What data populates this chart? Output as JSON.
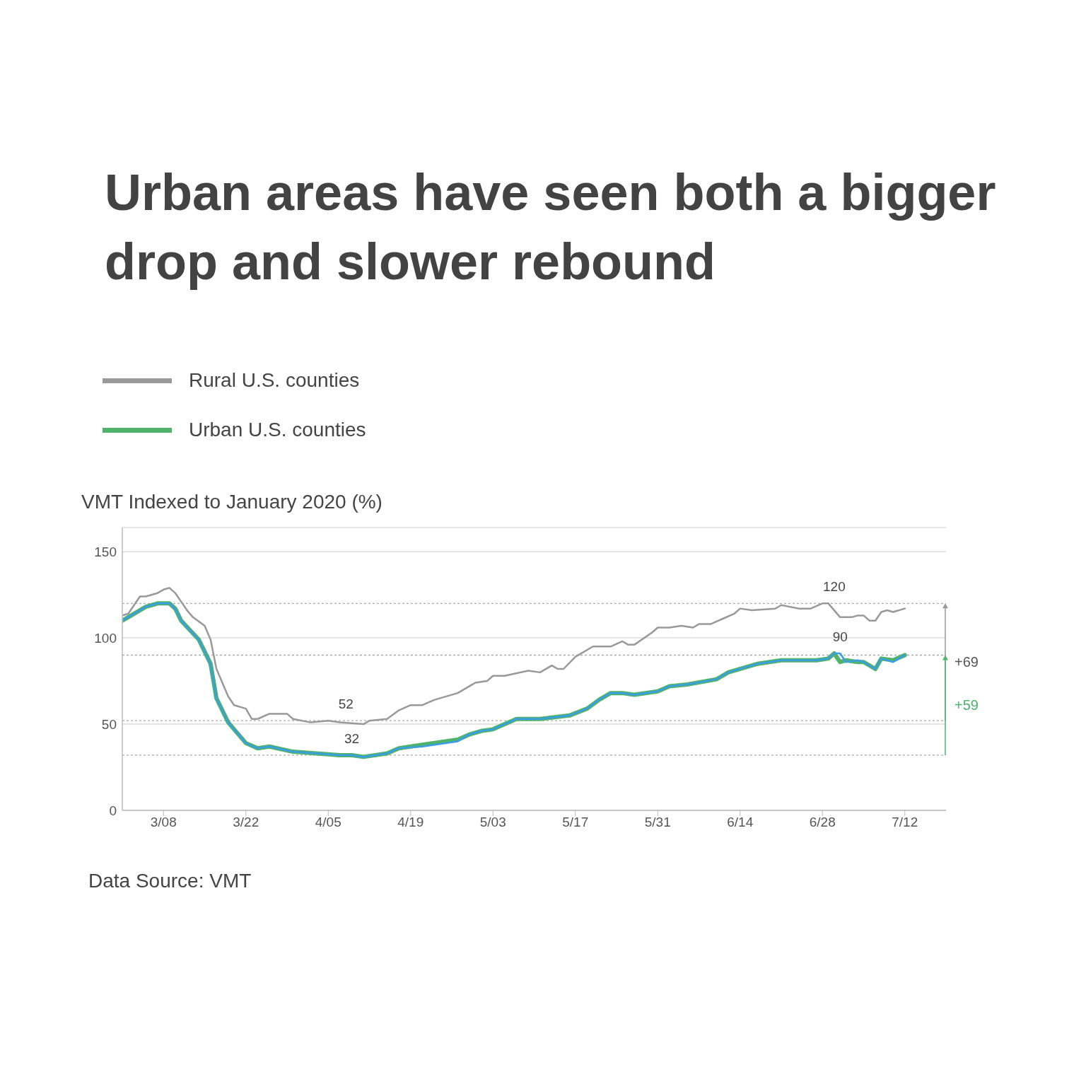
{
  "chart_data": {
    "type": "line",
    "title": "Urban areas have seen both a bigger drop and slower rebound",
    "ylabel": "VMT Indexed to January 2020 (%)",
    "series": [
      {
        "name": "Rural U.S. counties",
        "color": "#999999",
        "x": [
          "--03-01",
          "--03-02",
          "--03-04",
          "--03-05",
          "--03-07",
          "--03-08",
          "--03-09",
          "--03-10",
          "--03-12",
          "--03-13",
          "--03-15",
          "--03-16",
          "--03-17",
          "--03-19",
          "--03-20",
          "--03-22",
          "--03-23",
          "--03-24",
          "--03-26",
          "--03-29",
          "--03-30",
          "--04-02",
          "--04-05",
          "--04-07",
          "--04-11",
          "--04-12",
          "--04-15",
          "--04-17",
          "--04-19",
          "--04-21",
          "--04-23",
          "--04-27",
          "--04-29",
          "--04-30",
          "--05-02",
          "--05-03",
          "--05-05",
          "--05-09",
          "--05-11",
          "--05-13",
          "--05-14",
          "--05-15",
          "--05-17",
          "--05-20",
          "--05-21",
          "--05-23",
          "--05-25",
          "--05-26",
          "--05-27",
          "--05-30",
          "--05-31",
          "--06-02",
          "--06-04",
          "--06-06",
          "--06-07",
          "--06-09",
          "--06-11",
          "--06-13",
          "--06-14",
          "--06-16",
          "--06-20",
          "--06-21",
          "--06-24",
          "--06-26",
          "--06-28",
          "--06-29",
          "--07-01",
          "--07-03",
          "--07-04",
          "--07-05",
          "--07-06",
          "--07-07",
          "--07-08",
          "--07-09",
          "--07-10",
          "--07-12"
        ],
        "values": [
          113,
          114,
          124,
          124,
          126,
          128,
          129,
          126,
          116,
          112,
          107,
          99,
          82,
          66,
          61,
          59,
          53,
          53,
          56,
          56,
          53,
          51,
          52,
          51,
          50,
          52,
          53,
          58,
          61,
          61,
          64,
          68,
          72,
          74,
          75,
          78,
          78,
          81,
          80,
          84,
          82,
          82,
          89,
          95,
          95,
          95,
          98,
          96,
          96,
          103,
          106,
          106,
          107,
          106,
          108,
          108,
          111,
          114,
          117,
          116,
          117,
          119,
          117,
          117,
          120,
          120,
          112,
          112,
          113,
          113,
          110,
          110,
          115,
          116,
          115,
          117
        ]
      },
      {
        "name": "Urban U.S. counties",
        "color": "#4fb36b",
        "x": [
          "--03-01",
          "--03-02",
          "--03-05",
          "--03-07",
          "--03-09",
          "--03-10",
          "--03-11",
          "--03-14",
          "--03-16",
          "--03-17",
          "--03-19",
          "--03-22",
          "--03-24",
          "--03-26",
          "--03-30",
          "--04-03",
          "--04-07",
          "--04-09",
          "--04-11",
          "--04-15",
          "--04-17",
          "--04-21",
          "--04-27",
          "--04-29",
          "--05-01",
          "--05-03",
          "--05-05",
          "--05-07",
          "--05-11",
          "--05-16",
          "--05-19",
          "--05-21",
          "--05-23",
          "--05-25",
          "--05-27",
          "--05-31",
          "--06-02",
          "--06-05",
          "--06-10",
          "--06-12",
          "--06-17",
          "--06-21",
          "--06-27",
          "--06-29",
          "--06-30",
          "--07-01",
          "--07-02",
          "--07-04",
          "--07-05",
          "--07-07",
          "--07-08",
          "--07-10",
          "--07-12"
        ],
        "values": [
          110,
          112,
          118,
          120,
          120,
          117,
          110,
          99,
          85,
          65,
          51,
          39,
          36,
          37,
          34,
          33,
          32,
          32,
          31,
          33,
          36,
          38,
          41,
          44,
          46,
          47,
          50,
          53,
          53,
          55,
          59,
          64,
          68,
          68,
          67,
          69,
          72,
          73,
          76,
          80,
          85,
          87,
          87,
          88,
          91,
          86,
          87,
          86,
          86,
          82,
          88,
          87,
          90
        ]
      },
      {
        "color": "#3a9de8",
        "x": [
          "--03-01",
          "--03-02",
          "--03-05",
          "--03-07",
          "--03-09",
          "--03-10",
          "--03-11",
          "--03-14",
          "--03-16",
          "--03-17",
          "--03-19",
          "--03-22",
          "--03-24",
          "--03-26",
          "--03-30",
          "--04-03",
          "--04-07",
          "--04-09",
          "--04-11",
          "--04-15",
          "--04-17",
          "--04-21",
          "--04-27",
          "--04-29",
          "--05-01",
          "--05-03",
          "--05-05",
          "--05-07",
          "--05-11",
          "--05-16",
          "--05-19",
          "--05-21",
          "--05-23",
          "--05-25",
          "--05-27",
          "--05-31",
          "--06-02",
          "--06-05",
          "--06-10",
          "--06-12",
          "--06-17",
          "--06-21",
          "--06-27",
          "--06-29",
          "--06-30",
          "--07-01",
          "--07-02",
          "--07-04",
          "--07-05",
          "--07-07",
          "--07-08",
          "--07-10",
          "--07-12"
        ],
        "values": [
          110,
          112,
          118,
          120,
          120,
          117,
          110,
          99,
          85,
          65,
          51,
          39,
          36,
          37,
          34,
          33,
          32,
          32,
          31,
          33,
          36,
          37,
          40,
          44,
          46,
          47,
          50,
          53,
          53,
          55,
          59,
          64,
          68,
          68,
          67,
          69,
          72,
          73,
          76,
          80,
          85,
          87,
          87,
          88,
          91,
          91,
          86,
          87,
          86,
          82,
          88,
          86,
          90
        ]
      }
    ],
    "xlim": [
      "--03-01",
      "--07-19"
    ],
    "xticks": [
      {
        "value": "--03-08",
        "label": "3/08"
      },
      {
        "value": "--03-22",
        "label": "3/22"
      },
      {
        "value": "--04-05",
        "label": "4/05"
      },
      {
        "value": "--04-19",
        "label": "4/19"
      },
      {
        "value": "--05-03",
        "label": "5/03"
      },
      {
        "value": "--05-17",
        "label": "5/17"
      },
      {
        "value": "--05-31",
        "label": "5/31"
      },
      {
        "value": "--06-14",
        "label": "6/14"
      },
      {
        "value": "--06-28",
        "label": "6/28"
      },
      {
        "value": "--07-12",
        "label": "7/12"
      }
    ],
    "ylim": [
      0,
      164
    ],
    "yticks": [
      0,
      50,
      100,
      150
    ],
    "grid": "y",
    "legend": "top left",
    "marker": "none",
    "line_style": "solid",
    "ref_lines": [
      {
        "axis": "y",
        "value": 120,
        "color": "#aaaaaa",
        "line_style": "dotted"
      },
      {
        "axis": "y",
        "value": 90,
        "color": "#aaaaaa",
        "line_style": "dotted"
      },
      {
        "axis": "y",
        "value": 52,
        "color": "#aaaaaa",
        "line_style": "dotted"
      },
      {
        "axis": "y",
        "value": 32,
        "color": "#aaaaaa",
        "line_style": "dotted"
      }
    ],
    "annotations": [
      {
        "text": "52",
        "x": "--04-08",
        "y": 52
      },
      {
        "text": "32",
        "x": "--04-09",
        "y": 32
      },
      {
        "text": "120",
        "x": "--06-30",
        "y": 120
      },
      {
        "text": "90",
        "x": "--07-01",
        "y": 91
      },
      "+69",
      "+59",
      "Data Source: VMT"
    ]
  }
}
